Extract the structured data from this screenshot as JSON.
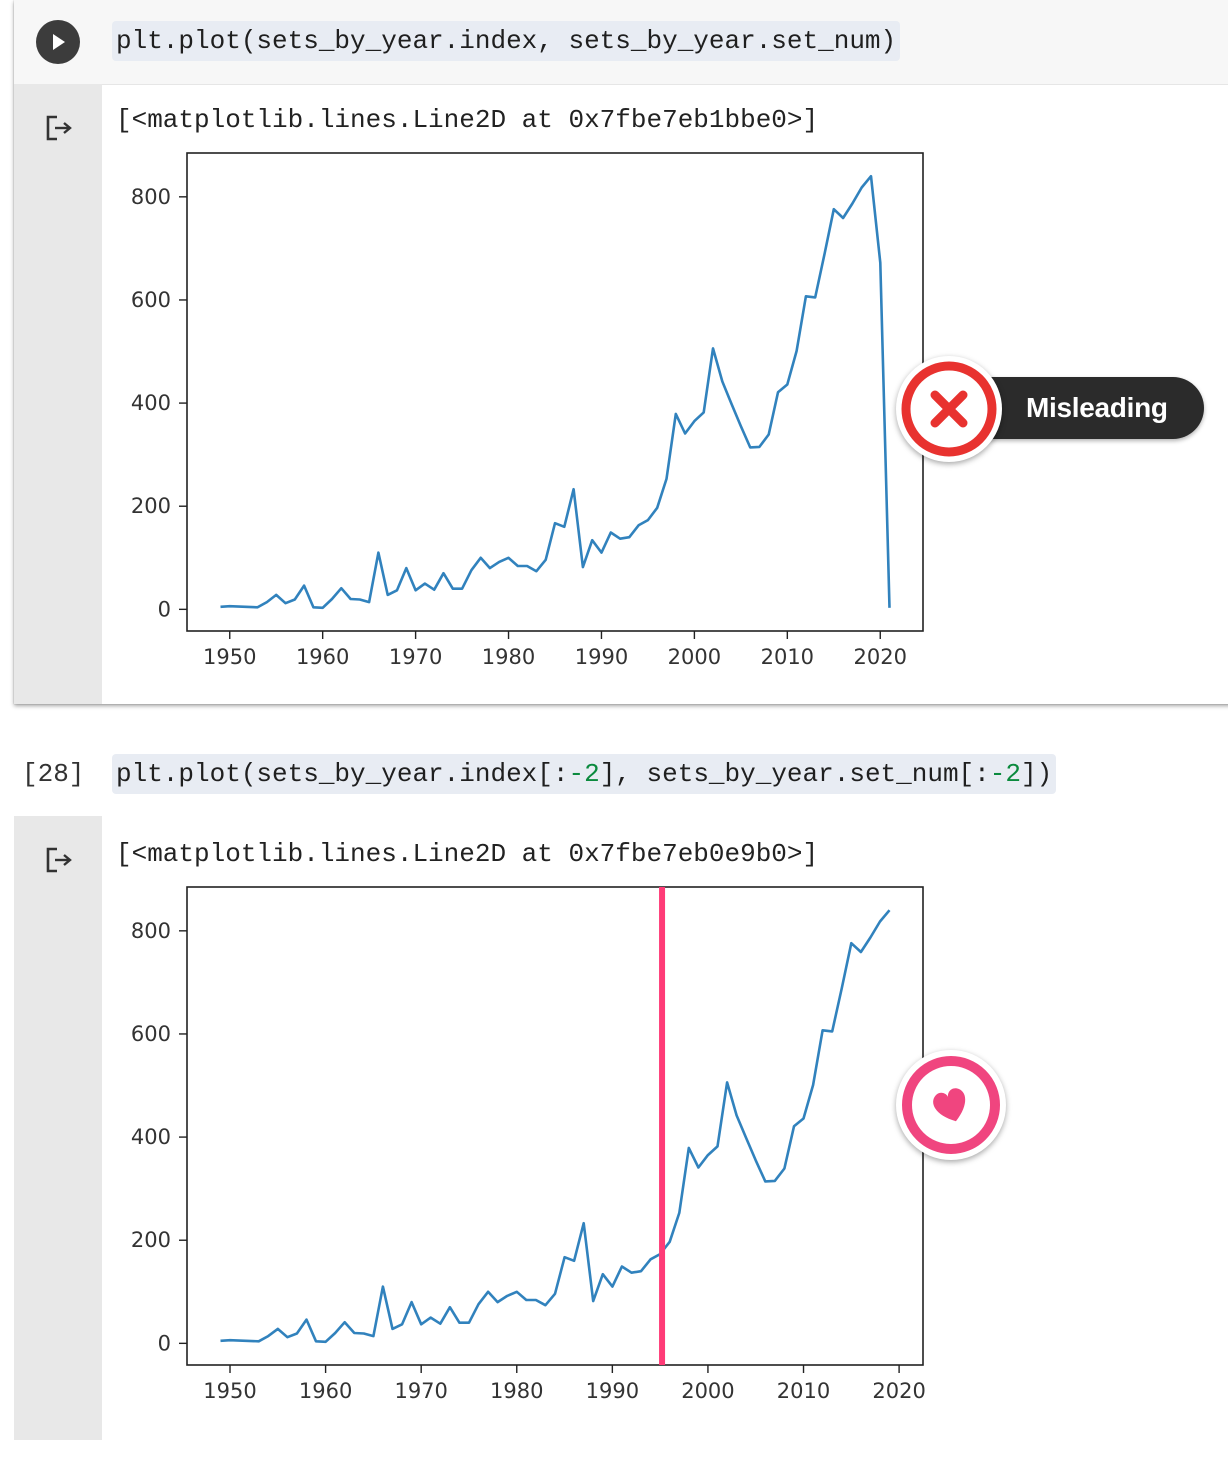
{
  "cell1": {
    "code": "plt.plot(sets_by_year.index, sets_by_year.set_num)",
    "output": "[<matplotlib.lines.Line2D at 0x7fbe7eb1bbe0>]"
  },
  "cell2": {
    "exec_count": "[28]",
    "code_parts": [
      "plt.plot(sets_by_year.index[:",
      "-2",
      "], sets_by_year.set_num[:",
      "-2",
      "])"
    ],
    "output": "[<matplotlib.lines.Line2D at 0x7fbe7eb0e9b0>]"
  },
  "badges": {
    "misleading_label": "Misleading"
  },
  "icons": {
    "run": "play-icon",
    "output": "output-arrow-icon",
    "misleading": "x-mark-icon",
    "good": "heart-icon"
  },
  "colors": {
    "line": "#3182bd",
    "marker_line": "#ff3b77",
    "x_red": "#e8322f",
    "heart_pink": "#f0457f"
  },
  "chart_data": [
    {
      "type": "line",
      "title": "",
      "xlabel": "",
      "ylabel": "",
      "xlim": [
        1945.4,
        2024.6
      ],
      "ylim": [
        -42,
        885
      ],
      "xticks": [
        1950,
        1960,
        1970,
        1980,
        1990,
        2000,
        2010,
        2020
      ],
      "yticks": [
        0,
        200,
        400,
        600,
        800
      ],
      "series": [
        {
          "x": [
            1949,
            1950,
            1953,
            1954,
            1955,
            1956,
            1957,
            1958,
            1959,
            1960,
            1961,
            1962,
            1963,
            1964,
            1965,
            1966,
            1967,
            1968,
            1969,
            1970,
            1971,
            1972,
            1973,
            1974,
            1975,
            1976,
            1977,
            1978,
            1979,
            1980,
            1981,
            1982,
            1983,
            1984,
            1985,
            1986,
            1987,
            1988,
            1989,
            1990,
            1991,
            1992,
            1993,
            1994,
            1995,
            1996,
            1997,
            1998,
            1999,
            2000,
            2001,
            2002,
            2003,
            2004,
            2005,
            2006,
            2007,
            2008,
            2009,
            2010,
            2011,
            2012,
            2013,
            2014,
            2015,
            2016,
            2017,
            2018,
            2019,
            2020,
            2021
          ],
          "y": [
            5,
            6,
            4,
            14,
            28,
            12,
            19,
            46,
            4,
            3,
            20,
            41,
            20,
            19,
            14,
            110,
            28,
            37,
            80,
            37,
            50,
            38,
            70,
            40,
            40,
            76,
            100,
            80,
            92,
            100,
            84,
            84,
            74,
            96,
            167,
            160,
            233,
            82,
            134,
            110,
            149,
            137,
            140,
            163,
            173,
            197,
            253,
            379,
            341,
            365,
            382,
            506,
            442,
            398,
            355,
            314,
            315,
            339,
            421,
            436,
            501,
            607,
            605,
            689,
            776,
            759,
            787,
            818,
            840,
            672,
            3
          ]
        }
      ]
    },
    {
      "type": "line",
      "title": "",
      "xlabel": "",
      "ylabel": "",
      "xlim": [
        1945.5,
        2022.5
      ],
      "ylim": [
        -42,
        885
      ],
      "xticks": [
        1950,
        1960,
        1970,
        1980,
        1990,
        2000,
        2010,
        2020
      ],
      "yticks": [
        0,
        200,
        400,
        600,
        800
      ],
      "vline_x": 1995.2,
      "series": [
        {
          "x": [
            1949,
            1950,
            1953,
            1954,
            1955,
            1956,
            1957,
            1958,
            1959,
            1960,
            1961,
            1962,
            1963,
            1964,
            1965,
            1966,
            1967,
            1968,
            1969,
            1970,
            1971,
            1972,
            1973,
            1974,
            1975,
            1976,
            1977,
            1978,
            1979,
            1980,
            1981,
            1982,
            1983,
            1984,
            1985,
            1986,
            1987,
            1988,
            1989,
            1990,
            1991,
            1992,
            1993,
            1994,
            1995,
            1996,
            1997,
            1998,
            1999,
            2000,
            2001,
            2002,
            2003,
            2004,
            2005,
            2006,
            2007,
            2008,
            2009,
            2010,
            2011,
            2012,
            2013,
            2014,
            2015,
            2016,
            2017,
            2018,
            2019
          ],
          "y": [
            5,
            6,
            4,
            14,
            28,
            12,
            19,
            46,
            4,
            3,
            20,
            41,
            20,
            19,
            14,
            110,
            28,
            37,
            80,
            37,
            50,
            38,
            70,
            40,
            40,
            76,
            100,
            80,
            92,
            100,
            84,
            84,
            74,
            96,
            167,
            160,
            233,
            82,
            134,
            110,
            149,
            137,
            140,
            163,
            173,
            197,
            253,
            379,
            341,
            365,
            382,
            506,
            442,
            398,
            355,
            314,
            315,
            339,
            421,
            436,
            501,
            607,
            605,
            689,
            776,
            759,
            787,
            818,
            840
          ]
        }
      ]
    }
  ]
}
